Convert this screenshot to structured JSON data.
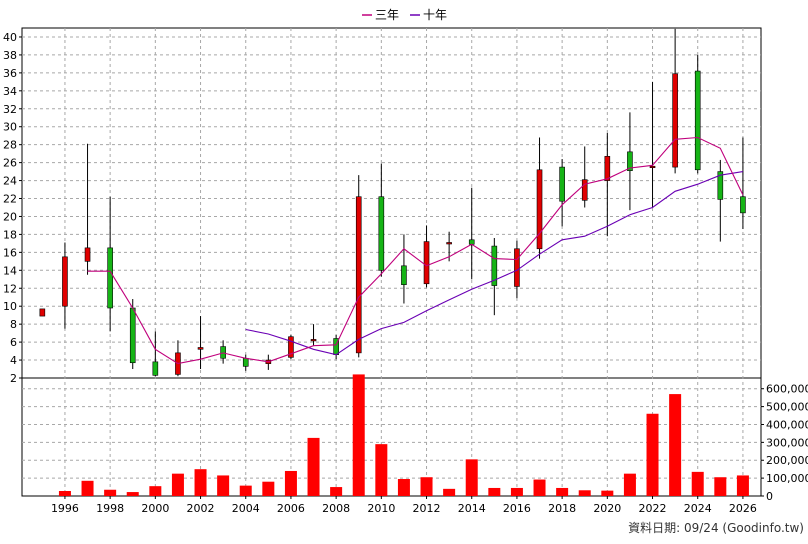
{
  "chart_data": {
    "type": "candlestick",
    "legend": [
      {
        "name": "三年",
        "color": "#c0007c"
      },
      {
        "name": "十年",
        "color": "#6a00b4"
      }
    ],
    "price_axis": {
      "ylim": [
        2,
        41
      ],
      "ticks": [
        2,
        4,
        6,
        8,
        10,
        12,
        14,
        16,
        18,
        20,
        22,
        24,
        26,
        28,
        30,
        32,
        34,
        36,
        38,
        40
      ]
    },
    "volume_axis": {
      "ylim": [
        0,
        660000
      ],
      "ticks": [
        0,
        100000,
        200000,
        300000,
        400000,
        500000,
        600000
      ],
      "tick_labels": [
        "0",
        "100,000",
        "200,000",
        "300,000",
        "400,000",
        "500,000",
        "600,000"
      ]
    },
    "x_axis": {
      "range": [
        1994.1,
        2026.8
      ],
      "tick_labels": [
        "1996",
        "1998",
        "2000",
        "2002",
        "2004",
        "2006",
        "2008",
        "2010",
        "2012",
        "2014",
        "2016",
        "2018",
        "2020",
        "2022",
        "2024",
        "2026"
      ]
    },
    "colors": {
      "up": "#e00000",
      "down": "#16b416",
      "volume": "#ff0000",
      "ma3": "#c0007c",
      "ma10": "#6a00b4",
      "grid": "#a8a8a8"
    },
    "candles": [
      {
        "x": 1995,
        "o": 8.9,
        "h": 9.7,
        "l": 8.9,
        "c": 9.7
      },
      {
        "x": 1996,
        "o": 10,
        "h": 17.1,
        "l": 7.5,
        "c": 15.5
      },
      {
        "x": 1997,
        "o": 15,
        "h": 28.1,
        "l": 13.5,
        "c": 16.5
      },
      {
        "x": 1998,
        "o": 16.5,
        "h": 22.2,
        "l": 7.2,
        "c": 9.8
      },
      {
        "x": 1999,
        "o": 9.8,
        "h": 10.8,
        "l": 3.0,
        "c": 3.7
      },
      {
        "x": 2000,
        "o": 3.8,
        "h": 7.2,
        "l": 2.2,
        "c": 2.3
      },
      {
        "x": 2001,
        "o": 2.4,
        "h": 6.2,
        "l": 2.2,
        "c": 4.8
      },
      {
        "x": 2002,
        "o": 5.2,
        "h": 8.9,
        "l": 3.0,
        "c": 5.4
      },
      {
        "x": 2003,
        "o": 5.5,
        "h": 6.2,
        "l": 3.6,
        "c": 4.2
      },
      {
        "x": 2004,
        "o": 4.2,
        "h": 4.6,
        "l": 2.8,
        "c": 3.3
      },
      {
        "x": 2005,
        "o": 3.6,
        "h": 4.6,
        "l": 2.9,
        "c": 4.0
      },
      {
        "x": 2006,
        "o": 4.3,
        "h": 6.8,
        "l": 4.1,
        "c": 6.6
      },
      {
        "x": 2007,
        "o": 6.3,
        "h": 8.0,
        "l": 5.6,
        "c": 6.3
      },
      {
        "x": 2008,
        "o": 6.4,
        "h": 6.8,
        "l": 4.1,
        "c": 4.6
      },
      {
        "x": 2009,
        "o": 4.8,
        "h": 24.6,
        "l": 4.3,
        "c": 22.2
      },
      {
        "x": 2010,
        "o": 22.2,
        "h": 25.9,
        "l": 13.3,
        "c": 14.0
      },
      {
        "x": 2011,
        "o": 14.5,
        "h": 18.0,
        "l": 10.3,
        "c": 12.4
      },
      {
        "x": 2012,
        "o": 12.5,
        "h": 19.0,
        "l": 12.1,
        "c": 17.2
      },
      {
        "x": 2013,
        "o": 17.1,
        "h": 18.3,
        "l": 15.0,
        "c": 17.1
      },
      {
        "x": 2014,
        "o": 17.4,
        "h": 23.2,
        "l": 13.0,
        "c": 16.9
      },
      {
        "x": 2015,
        "o": 16.7,
        "h": 17.6,
        "l": 9.0,
        "c": 12.3
      },
      {
        "x": 2016,
        "o": 12.2,
        "h": 17.3,
        "l": 10.9,
        "c": 16.4
      },
      {
        "x": 2017,
        "o": 16.4,
        "h": 28.8,
        "l": 15.3,
        "c": 25.2
      },
      {
        "x": 2018,
        "o": 25.5,
        "h": 26.4,
        "l": 18.9,
        "c": 21.7
      },
      {
        "x": 2019,
        "o": 21.8,
        "h": 27.8,
        "l": 21.0,
        "c": 24.1
      },
      {
        "x": 2020,
        "o": 24.0,
        "h": 29.3,
        "l": 17.8,
        "c": 26.7
      },
      {
        "x": 2021,
        "o": 27.2,
        "h": 31.6,
        "l": 20.7,
        "c": 25.1
      },
      {
        "x": 2022,
        "o": 25.6,
        "h": 35.0,
        "l": 21.0,
        "c": 25.6
      },
      {
        "x": 2023,
        "o": 25.5,
        "h": 40.9,
        "l": 24.8,
        "c": 35.9
      },
      {
        "x": 2024,
        "o": 36.2,
        "h": 38.0,
        "l": 24.8,
        "c": 25.2
      },
      {
        "x": 2025,
        "o": 25.0,
        "h": 26.3,
        "l": 17.2,
        "c": 21.9
      },
      {
        "x": 2026,
        "o": 22.2,
        "h": 28.8,
        "l": 18.6,
        "c": 20.4
      }
    ],
    "ma3": [
      [
        1997,
        13.9
      ],
      [
        1998,
        13.9
      ],
      [
        1999,
        9.8
      ],
      [
        2000,
        5.2
      ],
      [
        2001,
        3.6
      ],
      [
        2002,
        4.1
      ],
      [
        2003,
        4.8
      ],
      [
        2004,
        4.2
      ],
      [
        2005,
        3.8
      ],
      [
        2006,
        4.7
      ],
      [
        2007,
        5.6
      ],
      [
        2008,
        5.7
      ],
      [
        2009,
        11.0
      ],
      [
        2010,
        13.6
      ],
      [
        2011,
        16.4
      ],
      [
        2012,
        14.5
      ],
      [
        2013,
        15.5
      ],
      [
        2014,
        16.9
      ],
      [
        2015,
        15.3
      ],
      [
        2016,
        15.2
      ],
      [
        2017,
        18.1
      ],
      [
        2018,
        21.3
      ],
      [
        2019,
        23.6
      ],
      [
        2020,
        24.2
      ],
      [
        2021,
        25.4
      ],
      [
        2022,
        25.7
      ],
      [
        2023,
        28.6
      ],
      [
        2024,
        28.8
      ],
      [
        2025,
        27.6
      ],
      [
        2026,
        22.4
      ]
    ],
    "ma10": [
      [
        2004,
        7.4
      ],
      [
        2005,
        6.9
      ],
      [
        2006,
        6.1
      ],
      [
        2007,
        5.2
      ],
      [
        2008,
        4.6
      ],
      [
        2009,
        6.3
      ],
      [
        2010,
        7.5
      ],
      [
        2011,
        8.2
      ],
      [
        2012,
        9.5
      ],
      [
        2013,
        10.7
      ],
      [
        2014,
        11.9
      ],
      [
        2015,
        12.9
      ],
      [
        2016,
        14.0
      ],
      [
        2017,
        15.8
      ],
      [
        2018,
        17.4
      ],
      [
        2019,
        17.8
      ],
      [
        2020,
        18.9
      ],
      [
        2021,
        20.2
      ],
      [
        2022,
        21.0
      ],
      [
        2023,
        22.8
      ],
      [
        2024,
        23.6
      ],
      [
        2025,
        24.6
      ],
      [
        2026,
        25.0
      ]
    ],
    "volume": [
      [
        1996,
        28000
      ],
      [
        1997,
        85000
      ],
      [
        1998,
        35000
      ],
      [
        1999,
        22000
      ],
      [
        2000,
        55000
      ],
      [
        2001,
        125000
      ],
      [
        2002,
        150000
      ],
      [
        2003,
        115000
      ],
      [
        2004,
        58000
      ],
      [
        2005,
        80000
      ],
      [
        2006,
        140000
      ],
      [
        2007,
        325000
      ],
      [
        2008,
        50000
      ],
      [
        2009,
        680000
      ],
      [
        2010,
        290000
      ],
      [
        2011,
        95000
      ],
      [
        2012,
        105000
      ],
      [
        2013,
        40000
      ],
      [
        2014,
        205000
      ],
      [
        2015,
        45000
      ],
      [
        2016,
        45000
      ],
      [
        2017,
        92000
      ],
      [
        2018,
        45000
      ],
      [
        2019,
        32000
      ],
      [
        2020,
        30000
      ],
      [
        2021,
        125000
      ],
      [
        2022,
        460000
      ],
      [
        2023,
        570000
      ],
      [
        2024,
        135000
      ],
      [
        2025,
        105000
      ],
      [
        2026,
        115000
      ]
    ]
  },
  "credit": "資料日期: 09/24 (Goodinfo.tw)"
}
